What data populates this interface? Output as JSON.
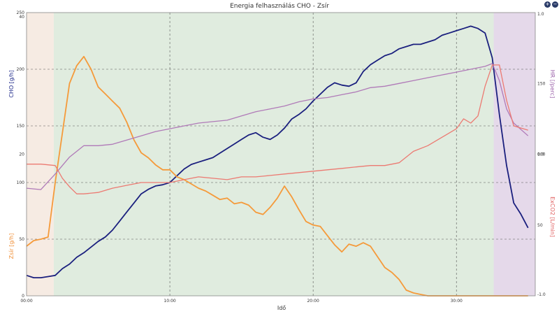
{
  "chart_data": {
    "type": "line",
    "title": "Energia felhasználás CHO - Zsír",
    "xlabel": "Idő",
    "x_ticks": [
      "00:00",
      "10:00",
      "20:00",
      "30:00"
    ],
    "x_range_min": [
      0,
      35.5
    ],
    "grid": true,
    "phases": [
      {
        "start_min": 0,
        "end_min": 1.9,
        "color": "#f6ebe3"
      },
      {
        "start_min": 1.9,
        "end_min": 32.6,
        "color": "#e0ecdf"
      },
      {
        "start_min": 32.6,
        "end_min": 35.5,
        "color": "#e5d9ea"
      }
    ],
    "axes": {
      "cho": {
        "label": "CHO [g/h]",
        "side": "left",
        "color": "#1f2a8a",
        "range": [
          0,
          250
        ],
        "ticks": [
          "0",
          "50",
          "100",
          "150",
          "200",
          "250"
        ]
      },
      "zsir": {
        "label": "Zsír [g/h]",
        "side": "left",
        "color": "#f0913a",
        "range": [
          0,
          40
        ],
        "ticks": [
          "0",
          "20",
          "40"
        ]
      },
      "hr": {
        "label": "HR [/perc]",
        "side": "right",
        "color": "#9a60a8",
        "range": [
          0,
          200
        ],
        "ticks": [
          "50",
          "100",
          "150"
        ]
      },
      "exco2": {
        "label": "ExCO2 [L/min]",
        "side": "right",
        "color": "#e06060",
        "range": [
          -1,
          1
        ],
        "ticks": [
          "-1.0",
          "0.0",
          "1.0"
        ]
      }
    },
    "series": [
      {
        "name": "CHO",
        "axis": "cho",
        "color": "#1a1f7e",
        "width": 1.8,
        "x": [
          0,
          0.5,
          1,
          1.5,
          2,
          2.5,
          3,
          3.5,
          4,
          4.5,
          5,
          5.5,
          6,
          6.5,
          7,
          7.5,
          8,
          8.5,
          9,
          9.5,
          10,
          10.5,
          11,
          11.5,
          12,
          12.5,
          13,
          13.5,
          14,
          14.5,
          15,
          15.5,
          16,
          16.5,
          17,
          17.5,
          18,
          18.5,
          19,
          19.5,
          20,
          20.5,
          21,
          21.5,
          22,
          22.5,
          23,
          23.5,
          24,
          24.5,
          25,
          25.5,
          26,
          26.5,
          27,
          27.5,
          28,
          28.5,
          29,
          29.5,
          30,
          30.5,
          31,
          31.5,
          32,
          32.5,
          33,
          33.5,
          34,
          34.5,
          35
        ],
        "y": [
          18,
          16,
          16,
          17,
          18,
          24,
          28,
          34,
          38,
          43,
          48,
          52,
          58,
          66,
          74,
          82,
          90,
          94,
          97,
          98,
          100,
          106,
          112,
          116,
          118,
          120,
          122,
          126,
          130,
          134,
          138,
          142,
          144,
          140,
          138,
          142,
          148,
          156,
          160,
          165,
          172,
          178,
          184,
          188,
          186,
          185,
          188,
          198,
          204,
          208,
          212,
          214,
          218,
          220,
          222,
          222,
          224,
          226,
          230,
          232,
          234,
          236,
          238,
          236,
          232,
          210,
          160,
          115,
          82,
          72,
          60
        ]
      },
      {
        "name": "Zsír",
        "axis": "zsir",
        "color": "#f59a3a",
        "width": 1.8,
        "x": [
          0,
          0.5,
          1,
          1.5,
          2,
          2.5,
          3,
          3.5,
          4,
          4.5,
          5,
          5.5,
          6,
          6.5,
          7,
          7.5,
          8,
          8.5,
          9,
          9.5,
          10,
          10.5,
          11,
          11.5,
          12,
          12.5,
          13,
          13.5,
          14,
          14.5,
          15,
          15.5,
          16,
          16.5,
          17,
          17.5,
          18,
          18.5,
          19,
          19.5,
          20,
          20.5,
          21,
          21.5,
          22,
          22.5,
          23,
          23.5,
          24,
          24.5,
          25,
          25.5,
          26,
          26.5,
          27,
          27.5,
          28,
          29,
          30,
          31,
          32,
          33,
          34,
          35
        ],
        "y": [
          7,
          7.8,
          8,
          8.3,
          16,
          23,
          30,
          32.5,
          33.8,
          32,
          29.5,
          28.5,
          27.5,
          26.5,
          24.5,
          22,
          20.2,
          19.5,
          18.5,
          17.8,
          17.8,
          16.8,
          16.4,
          15.8,
          15.2,
          14.8,
          14.2,
          13.6,
          13.8,
          13.0,
          13.2,
          12.8,
          11.8,
          11.5,
          12.5,
          13.8,
          15.5,
          14.0,
          12.2,
          10.5,
          10.0,
          9.8,
          8.5,
          7.2,
          6.2,
          7.3,
          7.0,
          7.5,
          7.0,
          5.5,
          4.0,
          3.3,
          2.3,
          0.8,
          0.4,
          0.2,
          0,
          0,
          0,
          0,
          0,
          0,
          0,
          0
        ]
      },
      {
        "name": "HR",
        "axis": "hr",
        "color": "#b07ab8",
        "width": 1.3,
        "x": [
          0,
          1,
          2,
          3,
          4,
          5,
          6,
          7,
          8,
          9,
          10,
          11,
          12,
          13,
          14,
          15,
          16,
          17,
          18,
          19,
          20,
          21,
          22,
          23,
          24,
          25,
          26,
          27,
          28,
          29,
          30,
          31,
          32,
          32.5,
          33,
          33.5,
          34,
          35
        ],
        "y": [
          76,
          75,
          86,
          98,
          106,
          106,
          107,
          110,
          113,
          116,
          118,
          120,
          122,
          123,
          124,
          127,
          130,
          132,
          134,
          137,
          139,
          140,
          142,
          144,
          147,
          148,
          150,
          152,
          154,
          156,
          158,
          160,
          162,
          164,
          152,
          132,
          122,
          113
        ]
      },
      {
        "name": "ExCO2",
        "axis": "exco2",
        "color": "#ec7a72",
        "width": 1.3,
        "x": [
          0,
          1,
          2,
          2.5,
          3,
          3.5,
          4,
          5,
          6,
          7,
          8,
          9,
          10,
          11,
          12,
          13,
          14,
          15,
          16,
          17,
          18,
          19,
          20,
          21,
          22,
          23,
          24,
          25,
          26,
          27,
          28,
          29,
          30,
          30.5,
          31,
          31.5,
          32,
          32.5,
          33,
          33.5,
          34,
          35
        ],
        "y": [
          -0.07,
          -0.07,
          -0.08,
          -0.17,
          -0.23,
          -0.28,
          -0.28,
          -0.27,
          -0.24,
          -0.22,
          -0.2,
          -0.2,
          -0.2,
          -0.18,
          -0.16,
          -0.17,
          -0.18,
          -0.16,
          -0.16,
          -0.15,
          -0.14,
          -0.13,
          -0.12,
          -0.11,
          -0.1,
          -0.09,
          -0.08,
          -0.08,
          -0.06,
          0.02,
          0.06,
          0.12,
          0.18,
          0.25,
          0.22,
          0.27,
          0.48,
          0.63,
          0.63,
          0.38,
          0.2,
          0.17
        ]
      }
    ]
  },
  "icons": [
    "zoom-in-icon",
    "zoom-out-icon"
  ]
}
